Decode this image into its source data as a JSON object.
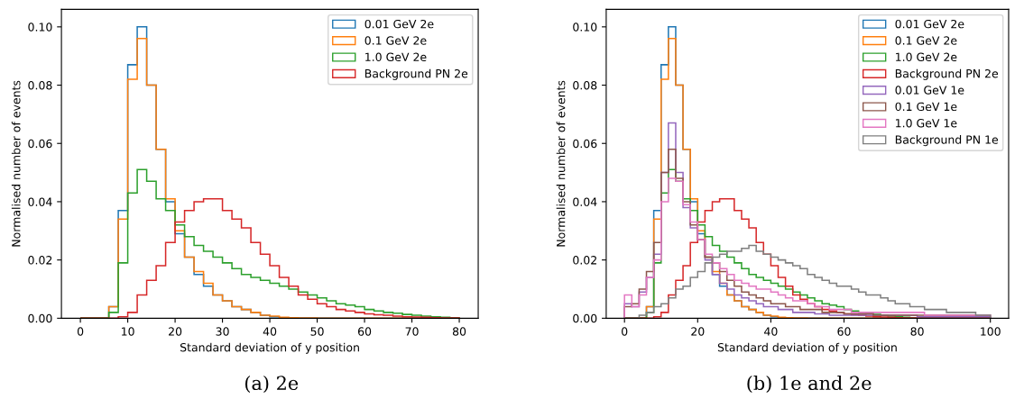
{
  "chart_data": [
    {
      "type": "histogram",
      "xlabel": "Standard deviation of y position",
      "ylabel": "Normalised number of events",
      "annotations": [
        "(a) 2e"
      ],
      "bins": [
        0,
        2,
        4,
        6,
        8,
        10,
        12,
        14,
        16,
        18,
        20,
        22,
        24,
        26,
        28,
        30,
        32,
        34,
        36,
        38,
        40,
        42,
        44,
        46,
        48,
        50,
        52,
        54,
        56,
        58,
        60,
        62,
        64,
        66,
        68,
        70,
        72,
        74,
        76,
        78,
        80
      ],
      "xlim": [
        -4,
        84
      ],
      "ylim": [
        0,
        0.106
      ],
      "xticks": [
        0,
        10,
        20,
        30,
        40,
        50,
        60,
        70,
        80
      ],
      "yticks": [
        {
          "value": 0,
          "label": "0.00"
        },
        {
          "value": 0.02,
          "label": "0.02"
        },
        {
          "value": 0.04,
          "label": "0.04"
        },
        {
          "value": 0.06,
          "label": "0.06"
        },
        {
          "value": 0.08,
          "label": "0.08"
        },
        {
          "value": 0.1,
          "label": "0.10"
        }
      ],
      "legend": "top right",
      "grid": false,
      "series": [
        {
          "name": "0.01 GeV 2e",
          "color": "#1f77b4",
          "values": [
            0,
            0,
            0,
            0.004,
            0.037,
            0.087,
            0.1,
            0.08,
            0.058,
            0.04,
            0.029,
            0.021,
            0.015,
            0.011,
            0.008,
            0.006,
            0.004,
            0.003,
            0.002,
            0.001,
            0.0005,
            0.0002,
            0,
            0,
            0,
            0,
            0,
            0,
            0,
            0,
            0,
            0,
            0,
            0,
            0,
            0,
            0,
            0,
            0,
            0
          ]
        },
        {
          "name": "0.1 GeV 2e",
          "color": "#ff7f0e",
          "values": [
            0,
            0,
            0,
            0.004,
            0.034,
            0.082,
            0.096,
            0.08,
            0.058,
            0.041,
            0.03,
            0.021,
            0.016,
            0.012,
            0.008,
            0.006,
            0.004,
            0.003,
            0.002,
            0.001,
            0.0007,
            0.0003,
            0.0002,
            0.0001,
            0.0001,
            0,
            0,
            0,
            0,
            0,
            0,
            0,
            0,
            0,
            0,
            0,
            0,
            0,
            0,
            0
          ]
        },
        {
          "name": "1.0 GeV 2e",
          "color": "#2ca02c",
          "values": [
            0,
            0,
            0,
            0.002,
            0.019,
            0.043,
            0.051,
            0.047,
            0.041,
            0.037,
            0.032,
            0.028,
            0.025,
            0.023,
            0.021,
            0.019,
            0.017,
            0.015,
            0.014,
            0.013,
            0.012,
            0.011,
            0.01,
            0.009,
            0.008,
            0.007,
            0.006,
            0.005,
            0.0045,
            0.004,
            0.003,
            0.0025,
            0.002,
            0.0017,
            0.0013,
            0.001,
            0.0007,
            0.0005,
            0.0003,
            0.0001
          ]
        },
        {
          "name": "Background PN 2e",
          "color": "#d62728",
          "values": [
            0,
            0,
            0,
            0,
            0.0005,
            0.002,
            0.008,
            0.013,
            0.018,
            0.026,
            0.033,
            0.037,
            0.04,
            0.041,
            0.041,
            0.037,
            0.034,
            0.031,
            0.026,
            0.022,
            0.018,
            0.014,
            0.011,
            0.008,
            0.0065,
            0.005,
            0.004,
            0.003,
            0.0025,
            0.002,
            0.0015,
            0.0012,
            0.001,
            0.0007,
            0.0005,
            0.0004,
            0.0003,
            0.0002,
            0.0001,
            0.0001
          ]
        }
      ]
    },
    {
      "type": "histogram",
      "xlabel": "Standard deviation of y position",
      "ylabel": "Normalised number of events",
      "annotations": [
        "(b) 1e and 2e"
      ],
      "bins": [
        0,
        2,
        4,
        6,
        8,
        10,
        12,
        14,
        16,
        18,
        20,
        22,
        24,
        26,
        28,
        30,
        32,
        34,
        36,
        38,
        40,
        42,
        44,
        46,
        48,
        50,
        52,
        54,
        56,
        58,
        60,
        62,
        64,
        66,
        68,
        70,
        72,
        74,
        76,
        78,
        80,
        82,
        84,
        86,
        88,
        90,
        92,
        94,
        96,
        98,
        100
      ],
      "xlim": [
        -5,
        105
      ],
      "ylim": [
        0,
        0.106
      ],
      "xticks": [
        0,
        20,
        40,
        60,
        80,
        100
      ],
      "yticks": [
        {
          "value": 0,
          "label": "0.00"
        },
        {
          "value": 0.02,
          "label": "0.02"
        },
        {
          "value": 0.04,
          "label": "0.04"
        },
        {
          "value": 0.06,
          "label": "0.06"
        },
        {
          "value": 0.08,
          "label": "0.08"
        },
        {
          "value": 0.1,
          "label": "0.10"
        }
      ],
      "legend": "top right",
      "grid": false,
      "series": [
        {
          "name": "0.01 GeV 2e",
          "color": "#1f77b4",
          "values": [
            0,
            0,
            0,
            0.004,
            0.037,
            0.087,
            0.1,
            0.08,
            0.058,
            0.04,
            0.029,
            0.021,
            0.015,
            0.011,
            0.008,
            0.006,
            0.004,
            0.003,
            0.002,
            0.001,
            0.0005,
            0.0002,
            0,
            0,
            0,
            0,
            0,
            0,
            0,
            0,
            0,
            0,
            0,
            0,
            0,
            0,
            0,
            0,
            0,
            0,
            0,
            0,
            0,
            0,
            0,
            0,
            0,
            0,
            0,
            0
          ]
        },
        {
          "name": "0.1 GeV 2e",
          "color": "#ff7f0e",
          "values": [
            0,
            0,
            0,
            0.004,
            0.034,
            0.082,
            0.096,
            0.08,
            0.058,
            0.041,
            0.03,
            0.021,
            0.016,
            0.012,
            0.008,
            0.006,
            0.004,
            0.003,
            0.002,
            0.001,
            0.0007,
            0.0003,
            0.0002,
            0.0001,
            0.0001,
            0,
            0,
            0,
            0,
            0,
            0,
            0,
            0,
            0,
            0,
            0,
            0,
            0,
            0,
            0,
            0,
            0,
            0,
            0,
            0,
            0,
            0,
            0,
            0,
            0
          ]
        },
        {
          "name": "1.0 GeV 2e",
          "color": "#2ca02c",
          "values": [
            0,
            0,
            0,
            0.002,
            0.019,
            0.043,
            0.051,
            0.047,
            0.041,
            0.037,
            0.032,
            0.028,
            0.025,
            0.023,
            0.021,
            0.019,
            0.017,
            0.015,
            0.014,
            0.013,
            0.012,
            0.011,
            0.01,
            0.009,
            0.008,
            0.007,
            0.006,
            0.005,
            0.0045,
            0.004,
            0.003,
            0.0025,
            0.002,
            0.0017,
            0.0013,
            0.001,
            0.0007,
            0.0005,
            0.0003,
            0.0001,
            0,
            0,
            0,
            0,
            0,
            0,
            0,
            0,
            0,
            0
          ]
        },
        {
          "name": "Background PN 2e",
          "color": "#d62728",
          "values": [
            0,
            0,
            0,
            0,
            0.0005,
            0.002,
            0.008,
            0.013,
            0.018,
            0.026,
            0.033,
            0.037,
            0.04,
            0.041,
            0.041,
            0.037,
            0.034,
            0.031,
            0.026,
            0.022,
            0.018,
            0.014,
            0.011,
            0.008,
            0.0065,
            0.005,
            0.004,
            0.003,
            0.0025,
            0.002,
            0.0015,
            0.0012,
            0.001,
            0.0007,
            0.0005,
            0.0004,
            0.0003,
            0.0002,
            0.0001,
            0.0001,
            0.0001,
            0.0001,
            0.0001,
            0.0001,
            0.0001,
            0.0001,
            0.0001,
            0.0001,
            0.0001,
            0.0001
          ]
        },
        {
          "name": "0.01 GeV 1e",
          "color": "#9467bd",
          "values": [
            0.005,
            0.004,
            0.009,
            0.014,
            0.022,
            0.05,
            0.067,
            0.05,
            0.038,
            0.031,
            0.027,
            0.02,
            0.015,
            0.012,
            0.01,
            0.008,
            0.007,
            0.006,
            0.005,
            0.004,
            0.004,
            0.003,
            0.003,
            0.002,
            0.002,
            0.002,
            0.0015,
            0.0015,
            0.001,
            0.001,
            0.001,
            0.001,
            0.001,
            0.001,
            0.001,
            0.001,
            0.001,
            0.001,
            0.001,
            0.001,
            0.0005,
            0.0005,
            0.0005,
            0.0005,
            0.0005,
            0.0005,
            0.0005,
            0.0005,
            0.0005,
            0.0005
          ]
        },
        {
          "name": "0.1 GeV 1e",
          "color": "#8c564b",
          "values": [
            0.004,
            0.005,
            0.01,
            0.016,
            0.026,
            0.05,
            0.058,
            0.048,
            0.04,
            0.032,
            0.027,
            0.021,
            0.019,
            0.016,
            0.013,
            0.011,
            0.009,
            0.008,
            0.007,
            0.006,
            0.005,
            0.005,
            0.004,
            0.004,
            0.003,
            0.003,
            0.003,
            0.002,
            0.002,
            0.002,
            0.0015,
            0.0015,
            0.0015,
            0.0015,
            0.001,
            0.001,
            0.001,
            0.001,
            0.001,
            0.001,
            0.001,
            0.001,
            0.001,
            0.001,
            0.001,
            0.001,
            0.001,
            0.001,
            0.001,
            0.001
          ]
        },
        {
          "name": "1.0 GeV 1e",
          "color": "#e377c2",
          "values": [
            0.008,
            0.004,
            0.008,
            0.014,
            0.02,
            0.04,
            0.048,
            0.047,
            0.039,
            0.033,
            0.027,
            0.022,
            0.019,
            0.017,
            0.015,
            0.013,
            0.012,
            0.011,
            0.01,
            0.01,
            0.009,
            0.008,
            0.007,
            0.006,
            0.006,
            0.005,
            0.004,
            0.004,
            0.003,
            0.003,
            0.003,
            0.002,
            0.002,
            0.002,
            0.002,
            0.002,
            0.002,
            0.002,
            0.002,
            0.002,
            0.002,
            0.001,
            0.001,
            0.001,
            0.001,
            0.001,
            0.001,
            0.001,
            0.001,
            0.001
          ]
        },
        {
          "name": "Background PN 1e",
          "color": "#7f7f7f",
          "values": [
            0,
            0,
            0.001,
            0.002,
            0.004,
            0.005,
            0.007,
            0.01,
            0.011,
            0.014,
            0.016,
            0.019,
            0.021,
            0.022,
            0.023,
            0.023,
            0.024,
            0.025,
            0.023,
            0.022,
            0.021,
            0.02,
            0.019,
            0.018,
            0.017,
            0.015,
            0.014,
            0.013,
            0.012,
            0.011,
            0.011,
            0.01,
            0.009,
            0.008,
            0.008,
            0.007,
            0.006,
            0.005,
            0.005,
            0.004,
            0.004,
            0.003,
            0.003,
            0.003,
            0.002,
            0.002,
            0.002,
            0.002,
            0.001,
            0.001
          ]
        }
      ]
    }
  ]
}
